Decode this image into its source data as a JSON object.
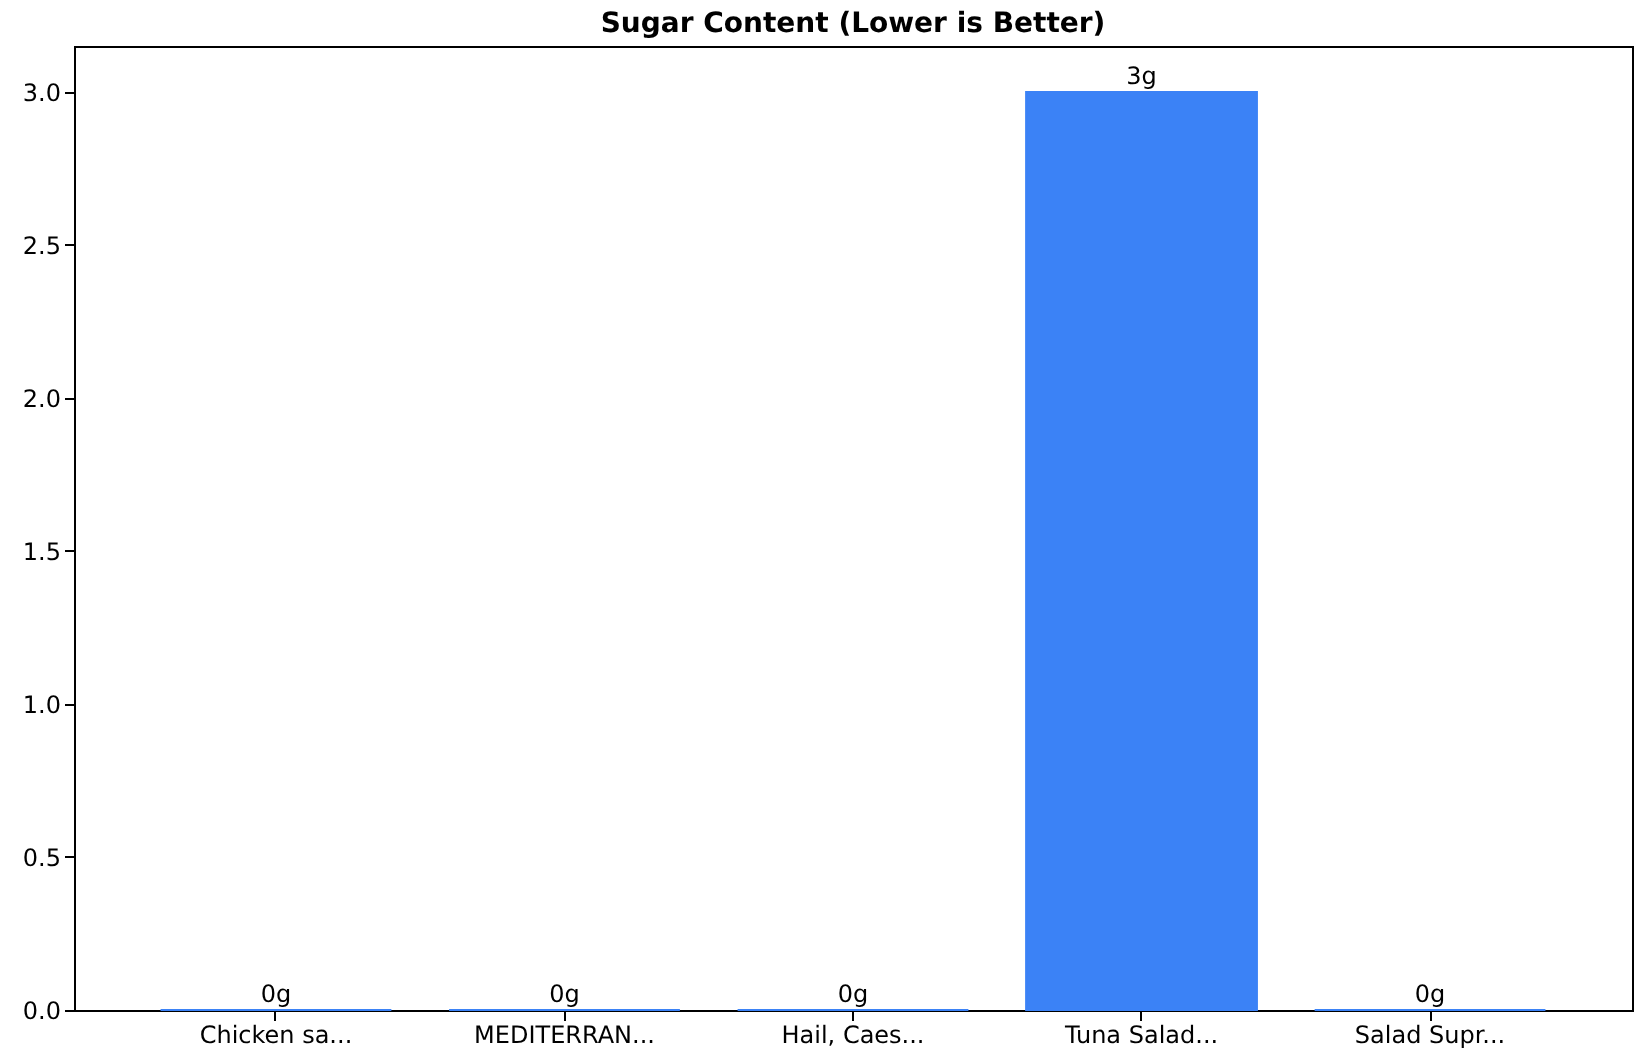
{
  "chart_data": {
    "type": "bar",
    "title": "Sugar Content (Lower is Better)",
    "categories": [
      "Chicken sa...",
      "MEDITERRAN...",
      "Hail, Caes...",
      "Tuna Salad...",
      "Salad Supr..."
    ],
    "values": [
      0,
      0,
      0,
      3,
      0
    ],
    "value_labels": [
      "0g",
      "0g",
      "0g",
      "3g",
      "0g"
    ],
    "color": "#3b82f6",
    "ylim": [
      0,
      3.15
    ],
    "yticks": [
      {
        "value": 0,
        "label": "0.0"
      },
      {
        "value": 0.5,
        "label": "0.5"
      },
      {
        "value": 1,
        "label": "1.0"
      },
      {
        "value": 1.5,
        "label": "1.5"
      },
      {
        "value": 2,
        "label": "2.0"
      },
      {
        "value": 2.5,
        "label": "2.5"
      },
      {
        "value": 3,
        "label": "3.0"
      }
    ],
    "grid": false
  }
}
